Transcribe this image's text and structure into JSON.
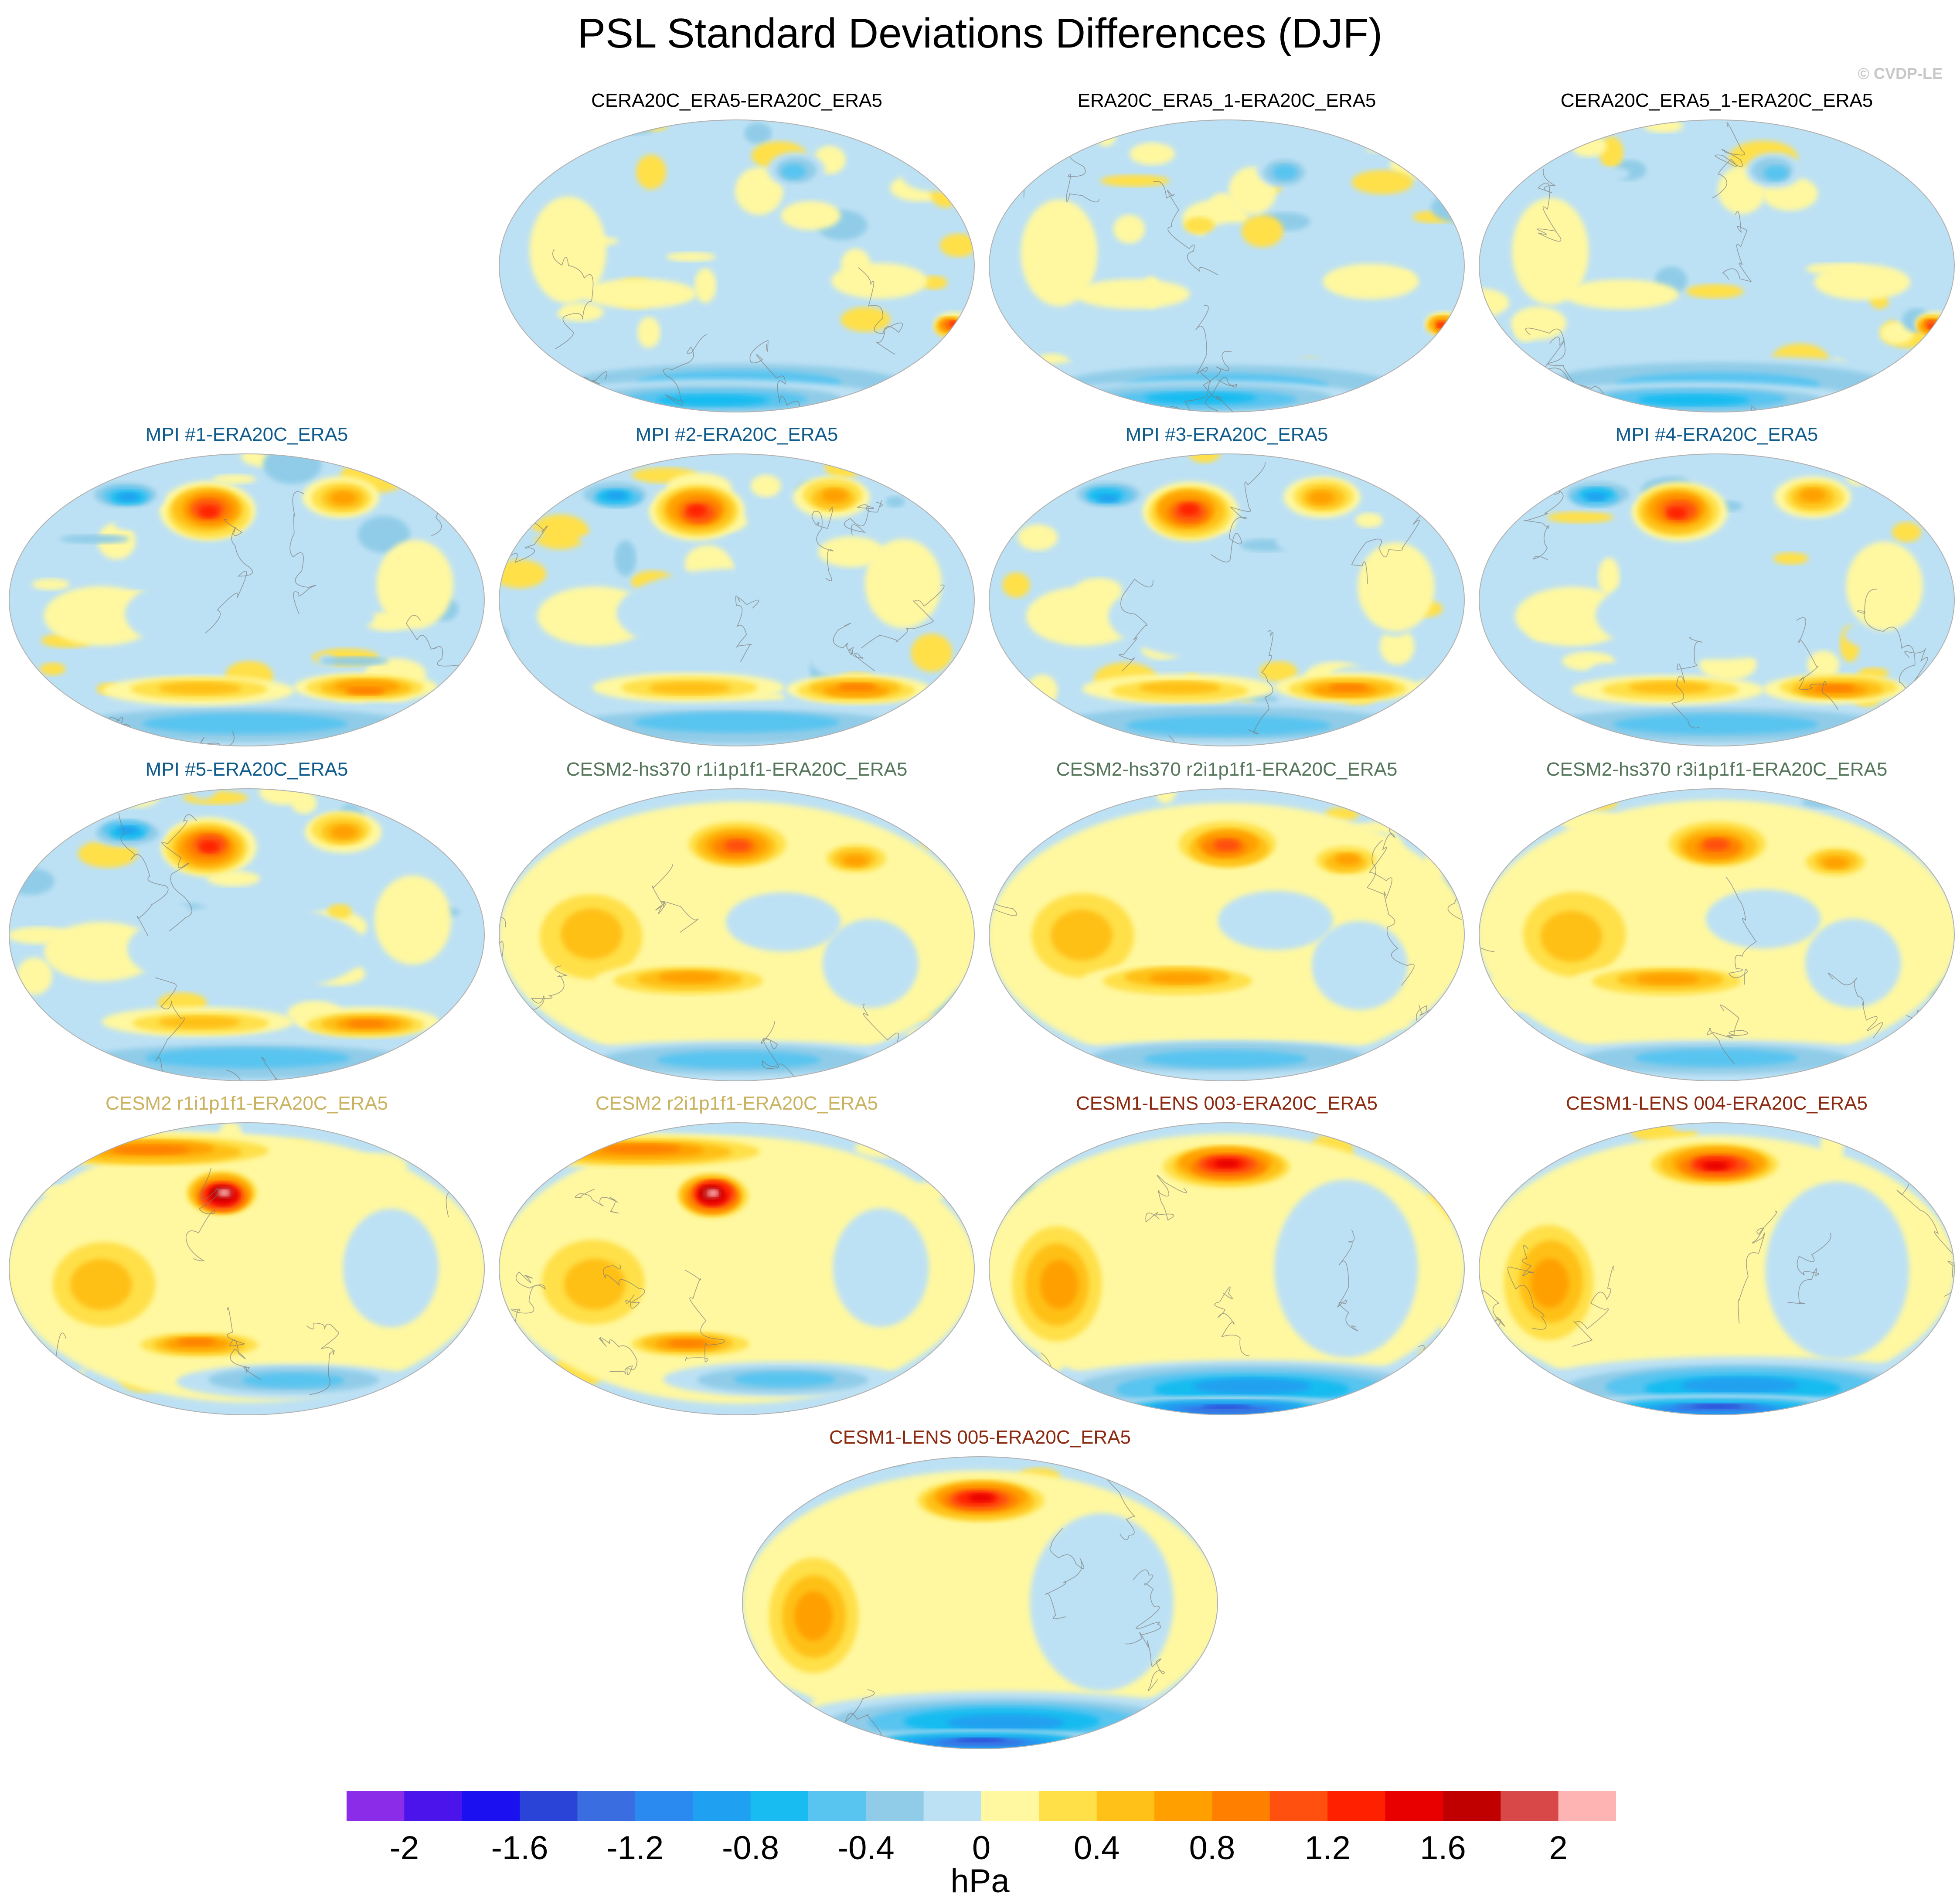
{
  "title": "PSL Standard Deviations Differences (DJF)",
  "credit": "© CVDP-LE",
  "colors": {
    "obs_title": "#000000",
    "mpi_title": "#0f5b8c",
    "cesm2_hs370_title": "#55765a",
    "cesm2_title": "#c9b260",
    "cesm1_lens_title": "#8b2a10"
  },
  "panels": [
    {
      "title": "CERA20C_ERA5-ERA20C_ERA5",
      "group": "obs",
      "pattern": "neutral"
    },
    {
      "title": "ERA20C_ERA5_1-ERA20C_ERA5",
      "group": "obs",
      "pattern": "neutral"
    },
    {
      "title": "CERA20C_ERA5_1-ERA20C_ERA5",
      "group": "obs",
      "pattern": "neutral"
    },
    {
      "title": "MPI #1-ERA20C_ERA5",
      "group": "mpi",
      "pattern": "mpi"
    },
    {
      "title": "MPI #2-ERA20C_ERA5",
      "group": "mpi",
      "pattern": "mpi"
    },
    {
      "title": "MPI #3-ERA20C_ERA5",
      "group": "mpi",
      "pattern": "mpi"
    },
    {
      "title": "MPI #4-ERA20C_ERA5",
      "group": "mpi",
      "pattern": "mpi"
    },
    {
      "title": "MPI #5-ERA20C_ERA5",
      "group": "mpi",
      "pattern": "mpi"
    },
    {
      "title": "CESM2-hs370 r1i1p1f1-ERA20C_ERA5",
      "group": "cesm2_hs370",
      "pattern": "warm"
    },
    {
      "title": "CESM2-hs370 r2i1p1f1-ERA20C_ERA5",
      "group": "cesm2_hs370",
      "pattern": "warm"
    },
    {
      "title": "CESM2-hs370 r3i1p1f1-ERA20C_ERA5",
      "group": "cesm2_hs370",
      "pattern": "warm"
    },
    {
      "title": "CESM2 r1i1p1f1-ERA20C_ERA5",
      "group": "cesm2",
      "pattern": "hot"
    },
    {
      "title": "CESM2 r2i1p1f1-ERA20C_ERA5",
      "group": "cesm2",
      "pattern": "hot"
    },
    {
      "title": "CESM1-LENS 003-ERA20C_ERA5",
      "group": "cesm1_lens",
      "pattern": "lens"
    },
    {
      "title": "CESM1-LENS 004-ERA20C_ERA5",
      "group": "cesm1_lens",
      "pattern": "lens"
    },
    {
      "title": "CESM1-LENS 005-ERA20C_ERA5",
      "group": "cesm1_lens",
      "pattern": "lens"
    }
  ],
  "colorbar": {
    "colors": [
      "#8a2ce8",
      "#4a14ea",
      "#1a10f0",
      "#2a44d8",
      "#3a6ee0",
      "#2a8af0",
      "#20a0f0",
      "#18bcf0",
      "#58c4f0",
      "#90cce8",
      "#bde1f4",
      "#fff8a0",
      "#ffe048",
      "#ffc018",
      "#ffa000",
      "#ff8000",
      "#ff5010",
      "#ff2000",
      "#e80000",
      "#c00000",
      "#d84848",
      "#ffb4b4"
    ],
    "labels": [
      "-2",
      "-1.6",
      "-1.2",
      "-0.8",
      "-0.4",
      "0",
      "0.4",
      "0.8",
      "1.2",
      "1.6",
      "2"
    ],
    "label_values": [
      -2,
      -1.6,
      -1.2,
      -0.8,
      -0.4,
      0,
      0.4,
      0.8,
      1.2,
      1.6,
      2
    ],
    "unit": "hPa"
  }
}
